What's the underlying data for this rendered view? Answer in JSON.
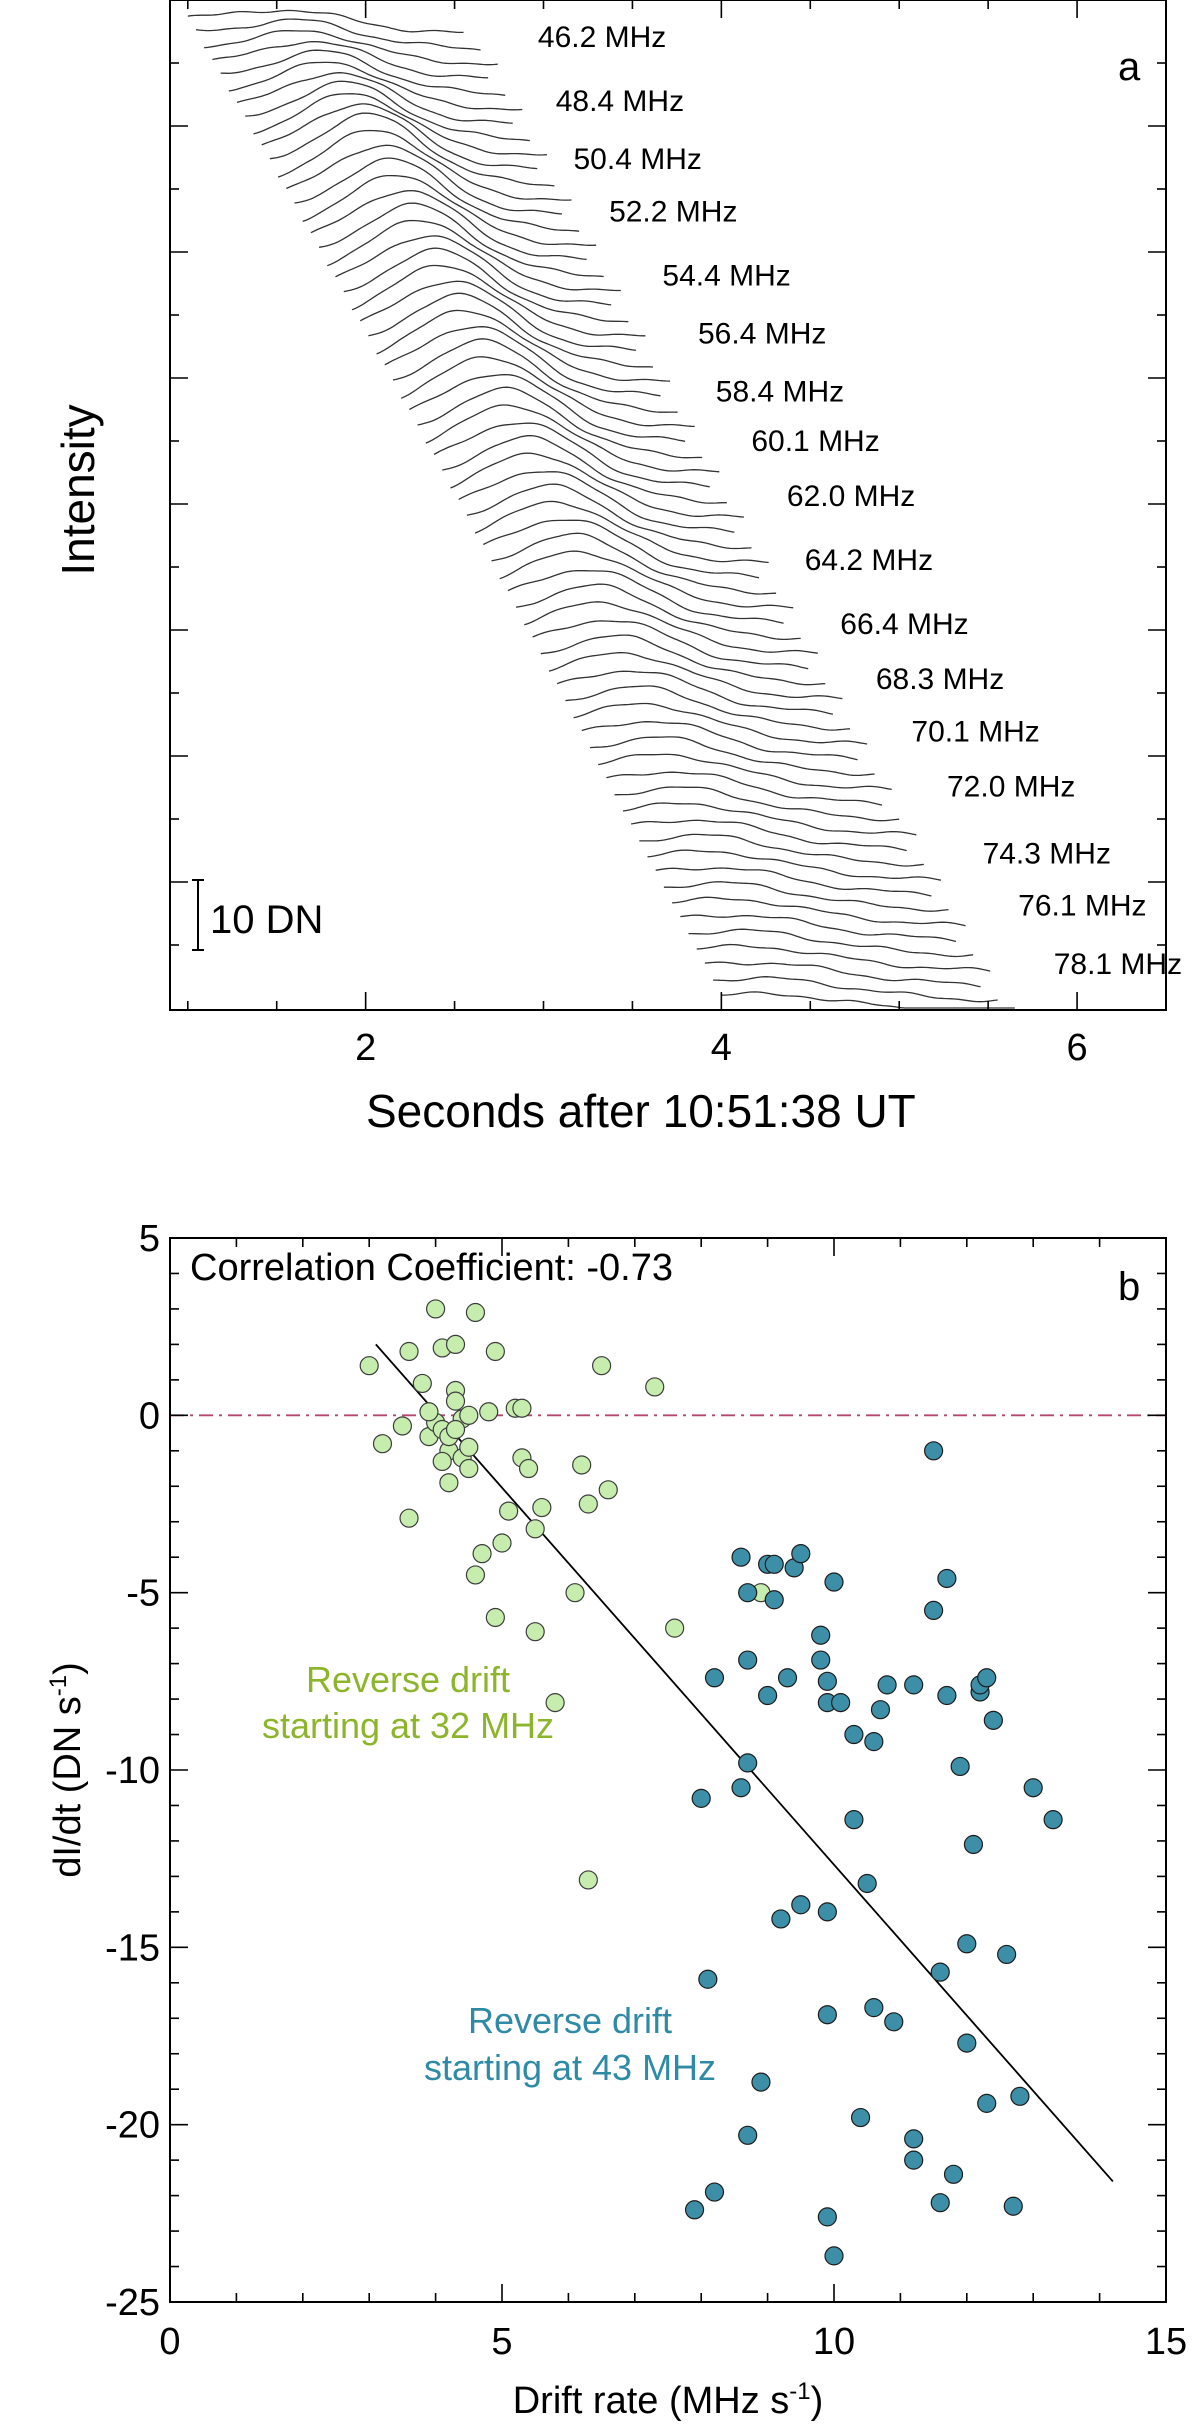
{
  "chart_data": [
    {
      "type": "line",
      "panel_label": "a",
      "xlabel": "Seconds after 10:51:38 UT",
      "ylabel": "Intensity",
      "x_ticks": [
        "2",
        "4",
        "6"
      ],
      "xlim": [
        0.9,
        6.5
      ],
      "scale_bar_label": "10 DN",
      "frequency_labels": [
        {
          "text": "46.2 MHz",
          "freq": 46.2,
          "time": 2.8
        },
        {
          "text": "48.4 MHz",
          "freq": 48.4,
          "time": 2.9
        },
        {
          "text": "50.4 MHz",
          "freq": 50.4,
          "time": 3.0
        },
        {
          "text": "52.2 MHz",
          "freq": 52.2,
          "time": 3.2
        },
        {
          "text": "54.4 MHz",
          "freq": 54.4,
          "time": 3.5
        },
        {
          "text": "56.4 MHz",
          "freq": 56.4,
          "time": 3.7
        },
        {
          "text": "58.4 MHz",
          "freq": 58.4,
          "time": 3.8
        },
        {
          "text": "60.1 MHz",
          "freq": 60.1,
          "time": 4.0
        },
        {
          "text": "62.0 MHz",
          "freq": 62.0,
          "time": 4.2
        },
        {
          "text": "64.2 MHz",
          "freq": 64.2,
          "time": 4.3
        },
        {
          "text": "66.4 MHz",
          "freq": 66.4,
          "time": 4.5
        },
        {
          "text": "68.3 MHz",
          "freq": 68.3,
          "time": 4.7
        },
        {
          "text": "70.1 MHz",
          "freq": 70.1,
          "time": 4.9
        },
        {
          "text": "72.0 MHz",
          "freq": 72.0,
          "time": 5.1
        },
        {
          "text": "74.3 MHz",
          "freq": 74.3,
          "time": 5.3
        },
        {
          "text": "76.1 MHz",
          "freq": 76.1,
          "time": 5.5
        },
        {
          "text": "78.1 MHz",
          "freq": 78.1,
          "time": 5.7
        }
      ]
    },
    {
      "type": "scatter",
      "panel_label": "b",
      "annotation": "Correlation Coefficient: -0.73",
      "xlabel": "Drift rate (MHz s",
      "xlabel_sup": "-1",
      "xlabel_end": ")",
      "ylabel": "dI/dt (DN s",
      "ylabel_sup": "-1",
      "ylabel_end": ")",
      "xlim": [
        0,
        15
      ],
      "ylim": [
        -25,
        5
      ],
      "x_ticks": [
        "0",
        "5",
        "10",
        "15"
      ],
      "y_ticks": [
        "5",
        "0",
        "-5",
        "-10",
        "-15",
        "-20",
        "-25"
      ],
      "reference_line_y": 0,
      "fit_line": {
        "x": [
          3.1,
          14.2
        ],
        "y": [
          2.0,
          -21.6
        ]
      },
      "series": [
        {
          "name": "Reverse drift starting at 32 MHz",
          "line1": "Reverse drift",
          "line2": "starting at 32 MHz",
          "color": "#c6ecae",
          "text_color": "#8db52b",
          "x": [
            3.0,
            3.2,
            3.5,
            3.6,
            3.6,
            3.8,
            3.9,
            4.0,
            4.0,
            4.1,
            4.1,
            4.2,
            4.2,
            4.3,
            4.3,
            4.3,
            4.4,
            4.4,
            4.5,
            4.5,
            4.6,
            4.6,
            4.7,
            4.8,
            4.9,
            4.9,
            5.0,
            5.1,
            5.2,
            5.3,
            5.3,
            5.4,
            5.5,
            5.6,
            5.8,
            6.1,
            6.2,
            6.3,
            6.5,
            6.6,
            7.3,
            7.6,
            8.9,
            6.3,
            4.2,
            3.9,
            4.5,
            4.1,
            4.3,
            5.5
          ],
          "y": [
            1.4,
            -0.8,
            -0.3,
            1.8,
            -2.9,
            0.9,
            -0.6,
            3.0,
            -0.2,
            1.9,
            -0.4,
            -1.0,
            -1.9,
            0.7,
            0.4,
            2.0,
            -1.2,
            -0.1,
            -1.5,
            0.0,
            -4.5,
            2.9,
            -3.9,
            0.1,
            1.8,
            -5.7,
            -3.6,
            -2.7,
            0.2,
            -1.2,
            0.2,
            -1.5,
            -3.2,
            -2.6,
            -8.1,
            -5.0,
            -1.4,
            -2.5,
            1.4,
            -2.1,
            0.8,
            -6.0,
            -5.0,
            -13.1,
            -0.6,
            0.1,
            -0.9,
            -1.3,
            -0.4,
            -6.1
          ]
        },
        {
          "name": "Reverse drift starting at 43 MHz",
          "line1": "Reverse drift",
          "line2": "starting at 43 MHz",
          "color": "#3d8fa8",
          "text_color": "#2f8aa6",
          "x": [
            7.9,
            8.0,
            8.1,
            8.2,
            8.2,
            8.6,
            8.6,
            8.7,
            8.7,
            8.7,
            8.9,
            9.0,
            9.0,
            9.1,
            9.1,
            9.2,
            9.3,
            9.4,
            9.5,
            9.5,
            9.8,
            9.8,
            9.9,
            9.9,
            9.9,
            9.9,
            9.9,
            10.0,
            10.0,
            10.1,
            10.3,
            10.3,
            10.4,
            10.5,
            10.6,
            10.6,
            10.7,
            10.8,
            10.9,
            11.2,
            11.2,
            11.2,
            11.5,
            11.5,
            11.6,
            11.6,
            11.7,
            11.7,
            11.8,
            11.9,
            12.0,
            12.0,
            12.1,
            12.2,
            12.2,
            12.3,
            12.3,
            12.4,
            12.6,
            12.7,
            12.8,
            13.0,
            13.3,
            8.7
          ],
          "y": [
            -22.4,
            -10.8,
            -15.9,
            -21.9,
            -7.4,
            -10.5,
            -4.0,
            -6.9,
            -20.3,
            -9.8,
            -18.8,
            -7.9,
            -4.2,
            -5.2,
            -4.2,
            -14.2,
            -7.4,
            -4.3,
            -3.9,
            -13.8,
            -6.2,
            -6.9,
            -7.5,
            -8.1,
            -14.0,
            -16.9,
            -22.6,
            -4.7,
            -23.7,
            -8.1,
            -9.0,
            -11.4,
            -19.8,
            -13.2,
            -9.2,
            -16.7,
            -8.3,
            -7.6,
            -17.1,
            -21.0,
            -20.4,
            -7.6,
            -5.5,
            -1.0,
            -22.2,
            -15.7,
            -7.9,
            -4.6,
            -21.4,
            -9.9,
            -14.9,
            -17.7,
            -12.1,
            -7.8,
            -7.6,
            -19.4,
            -7.4,
            -8.6,
            -15.2,
            -22.3,
            -19.2,
            -10.5,
            -11.4,
            -5.0
          ]
        }
      ]
    }
  ]
}
